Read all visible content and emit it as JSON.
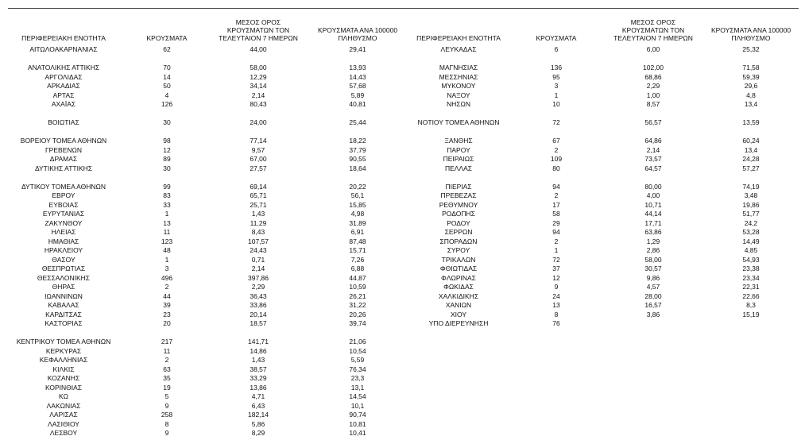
{
  "left": {
    "header": [
      "ΠΕΡΙΦΕΡΕΙΑΚΗ ΕΝΟΤΗΤΑ",
      "ΚΡΟΥΣΜΑΤΑ",
      "ΜΕΣΟΣ ΟΡΟΣ ΚΡΟΥΣΜΑΤΩΝ ΤΟΝ ΤΕΛΕΥΤΑΙΟΝ 7 ΗΜΕΡΩΝ",
      "ΚΡΟΥΣΜΑΤΑ ΑΝΑ 100000 ΠΛΗΘΥΣΜΟ"
    ],
    "groups": [
      [
        [
          "ΑΙΤΩΛΟΑΚΑΡΝΑΝΙΑΣ",
          "62",
          "44,00",
          "29,41"
        ]
      ],
      [
        [
          "ΑΝΑΤΟΛΙΚΗΣ ΑΤΤΙΚΗΣ",
          "70",
          "58,00",
          "13,93"
        ],
        [
          "ΑΡΓΟΛΙΔΑΣ",
          "14",
          "12,29",
          "14,43"
        ],
        [
          "ΑΡΚΑΔΙΑΣ",
          "50",
          "34,14",
          "57,68"
        ],
        [
          "ΑΡΤΑΣ",
          "4",
          "2,14",
          "5,89"
        ],
        [
          "ΑΧΑΪΑΣ",
          "126",
          "80,43",
          "40,81"
        ]
      ],
      [
        [
          "ΒΟΙΩΤΙΑΣ",
          "30",
          "24,00",
          "25,44"
        ]
      ],
      [
        [
          "ΒΟΡΕΙΟΥ ΤΟΜΕΑ ΑΘΗΝΩΝ",
          "98",
          "77,14",
          "18,22"
        ],
        [
          "ΓΡΕΒΕΝΩΝ",
          "12",
          "9,57",
          "37,79"
        ],
        [
          "ΔΡΑΜΑΣ",
          "89",
          "67,00",
          "90,55"
        ],
        [
          "ΔΥΤΙΚΗΣ ΑΤΤΙΚΗΣ",
          "30",
          "27,57",
          "18,64"
        ]
      ],
      [
        [
          "ΔΥΤΙΚΟΥ ΤΟΜΕΑ ΑΘΗΝΩΝ",
          "99",
          "69,14",
          "20,22"
        ],
        [
          "ΕΒΡΟΥ",
          "83",
          "65,71",
          "56,1"
        ],
        [
          "ΕΥΒΟΙΑΣ",
          "33",
          "25,71",
          "15,85"
        ],
        [
          "ΕΥΡΥΤΑΝΙΑΣ",
          "1",
          "1,43",
          "4,98"
        ],
        [
          "ΖΑΚΥΝΘΟΥ",
          "13",
          "11,29",
          "31,89"
        ],
        [
          "ΗΛΕΙΑΣ",
          "11",
          "8,43",
          "6,91"
        ],
        [
          "ΗΜΑΘΙΑΣ",
          "123",
          "107,57",
          "87,48"
        ],
        [
          "ΗΡΑΚΛΕΙΟΥ",
          "48",
          "24,43",
          "15,71"
        ],
        [
          "ΘΑΣΟΥ",
          "1",
          "0,71",
          "7,26"
        ],
        [
          "ΘΕΣΠΡΩΤΙΑΣ",
          "3",
          "2,14",
          "6,88"
        ],
        [
          "ΘΕΣΣΑΛΟΝΙΚΗΣ",
          "496",
          "397,86",
          "44,87"
        ],
        [
          "ΘΗΡΑΣ",
          "2",
          "2,29",
          "10,59"
        ],
        [
          "ΙΩΑΝΝΙΝΩΝ",
          "44",
          "36,43",
          "26,21"
        ],
        [
          "ΚΑΒΑΛΑΣ",
          "39",
          "33,86",
          "31,22"
        ],
        [
          "ΚΑΡΔΙΤΣΑΣ",
          "23",
          "20,14",
          "20,26"
        ],
        [
          "ΚΑΣΤΟΡΙΑΣ",
          "20",
          "18,57",
          "39,74"
        ]
      ],
      [
        [
          "ΚΕΝΤΡΙΚΟΥ ΤΟΜΕΑ ΑΘΗΝΩΝ",
          "217",
          "141,71",
          "21,06"
        ],
        [
          "ΚΕΡΚΥΡΑΣ",
          "11",
          "14,86",
          "10,54"
        ],
        [
          "ΚΕΦΑΛΛΗΝΙΑΣ",
          "2",
          "1,43",
          "5,59"
        ],
        [
          "ΚΙΛΚΙΣ",
          "63",
          "38,57",
          "76,34"
        ],
        [
          "ΚΟΖΑΝΗΣ",
          "35",
          "33,29",
          "23,3"
        ],
        [
          "ΚΟΡΙΝΘΙΑΣ",
          "19",
          "13,86",
          "13,1"
        ],
        [
          "ΚΩ",
          "5",
          "4,71",
          "14,54"
        ],
        [
          "ΛΑΚΩΝΙΑΣ",
          "9",
          "6,43",
          "10,1"
        ],
        [
          "ΛΑΡΙΣΑΣ",
          "258",
          "182,14",
          "90,74"
        ],
        [
          "ΛΑΣΙΘΙΟΥ",
          "8",
          "5,86",
          "10,81"
        ],
        [
          "ΛΕΣΒΟΥ",
          "9",
          "8,29",
          "10,41"
        ]
      ]
    ]
  },
  "right": {
    "header": [
      "ΠΕΡΙΦΕΡΕΙΑΚΗ ΕΝΟΤΗΤΑ",
      "ΚΡΟΥΣΜΑΤΑ",
      "ΜΕΣΟΣ ΟΡΟΣ ΚΡΟΥΣΜΑΤΩΝ ΤΟΝ ΤΕΛΕΥΤΑΙΟΝ 7 ΗΜΕΡΩΝ",
      "ΚΡΟΥΣΜΑΤΑ ΑΝΑ 100000 ΠΛΗΘΥΣΜΟ"
    ],
    "groups": [
      [
        [
          "ΛΕΥΚΑΔΑΣ",
          "6",
          "6,00",
          "25,32"
        ]
      ],
      [
        [
          "ΜΑΓΝΗΣΙΑΣ",
          "136",
          "102,00",
          "71,58"
        ],
        [
          "ΜΕΣΣΗΝΙΑΣ",
          "95",
          "68,86",
          "59,39"
        ],
        [
          "ΜΥΚΟΝΟΥ",
          "3",
          "2,29",
          "29,6"
        ],
        [
          "ΝΑΞΟΥ",
          "1",
          "1,00",
          "4,8"
        ],
        [
          "ΝΗΣΩΝ",
          "10",
          "8,57",
          "13,4"
        ]
      ],
      [
        [
          "ΝΟΤΙΟΥ ΤΟΜΕΑ ΑΘΗΝΩΝ",
          "72",
          "56,57",
          "13,59"
        ]
      ],
      [
        [
          "ΞΑΝΘΗΣ",
          "67",
          "64,86",
          "60,24"
        ],
        [
          "ΠΑΡΟΥ",
          "2",
          "2,14",
          "13,4"
        ],
        [
          "ΠΕΙΡΑΙΩΣ",
          "109",
          "73,57",
          "24,28"
        ],
        [
          "ΠΕΛΛΑΣ",
          "80",
          "64,57",
          "57,27"
        ]
      ],
      [
        [
          "ΠΙΕΡΙΑΣ",
          "94",
          "80,00",
          "74,19"
        ],
        [
          "ΠΡΕΒΕΖΑΣ",
          "2",
          "4,00",
          "3,48"
        ],
        [
          "ΡΕΘΥΜΝΟΥ",
          "17",
          "10,71",
          "19,86"
        ],
        [
          "ΡΟΔΟΠΗΣ",
          "58",
          "44,14",
          "51,77"
        ],
        [
          "ΡΟΔΟΥ",
          "29",
          "17,71",
          "24,2"
        ],
        [
          "ΣΕΡΡΩΝ",
          "94",
          "63,86",
          "53,28"
        ],
        [
          "ΣΠΟΡΑΔΩΝ",
          "2",
          "1,29",
          "14,49"
        ],
        [
          "ΣΥΡΟΥ",
          "1",
          "2,86",
          "4,85"
        ],
        [
          "ΤΡΙΚΑΛΩΝ",
          "72",
          "58,00",
          "54,93"
        ],
        [
          "ΦΘΙΩΤΙΔΑΣ",
          "37",
          "30,57",
          "23,38"
        ],
        [
          "ΦΛΩΡΙΝΑΣ",
          "12",
          "9,86",
          "23,34"
        ],
        [
          "ΦΩΚΙΔΑΣ",
          "9",
          "4,57",
          "22,31"
        ],
        [
          "ΧΑΛΚΙΔΙΚΗΣ",
          "24",
          "28,00",
          "22,66"
        ],
        [
          "ΧΑΝΙΩΝ",
          "13",
          "16,57",
          "8,3"
        ],
        [
          "ΧΙΟΥ",
          "8",
          "3,86",
          "15,19"
        ],
        [
          "ΥΠΟ ΔΙΕΡΕΥΝΗΣΗ",
          "76"
        ]
      ]
    ]
  }
}
